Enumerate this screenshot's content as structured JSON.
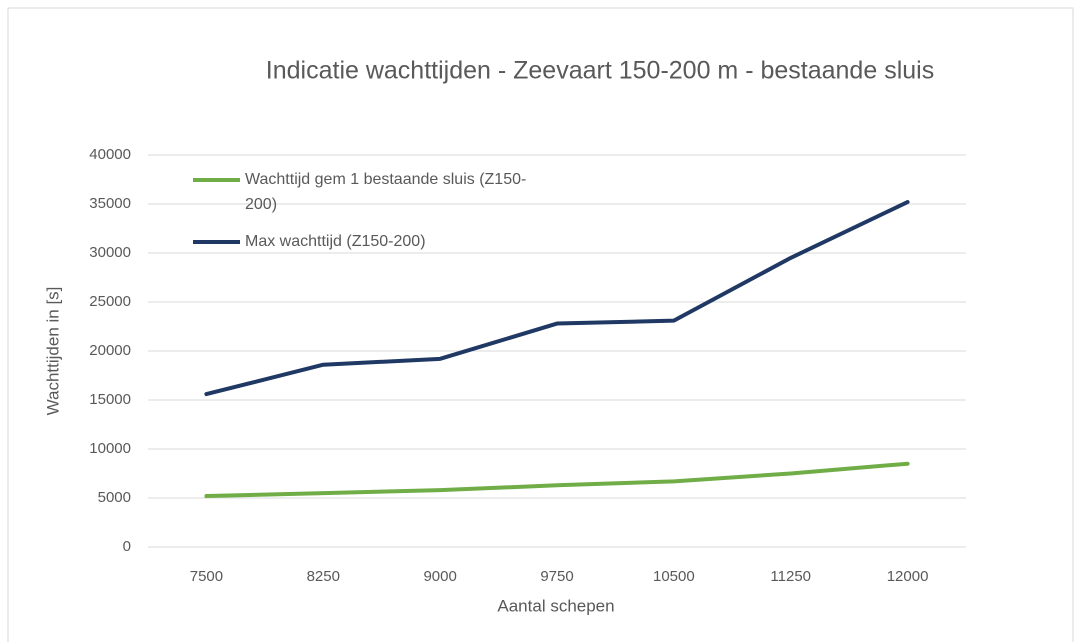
{
  "chart_data": {
    "type": "line",
    "title": "Indicatie wachttijden - Zeevaart 150-200 m - bestaande sluis",
    "x_label": "Aantal schepen",
    "y_label": "Wachttijden in [s]",
    "categories": [
      "7500",
      "8250",
      "9000",
      "9750",
      "10500",
      "11250",
      "12000"
    ],
    "series": [
      {
        "name": "Wachttijd gem 1 bestaande sluis (Z150-200)",
        "color": "#70ad47",
        "values": [
          5200,
          5500,
          5800,
          6300,
          6700,
          7500,
          8500
        ]
      },
      {
        "name": "Max wachttijd (Z150-200)",
        "color": "#1f3864",
        "values": [
          15600,
          18600,
          19200,
          22800,
          23100,
          29500,
          35200
        ]
      }
    ],
    "ylim": [
      0,
      40000
    ],
    "yticks": [
      0,
      5000,
      10000,
      15000,
      20000,
      25000,
      30000,
      35000,
      40000
    ],
    "grid": true,
    "legend": "top-left"
  }
}
